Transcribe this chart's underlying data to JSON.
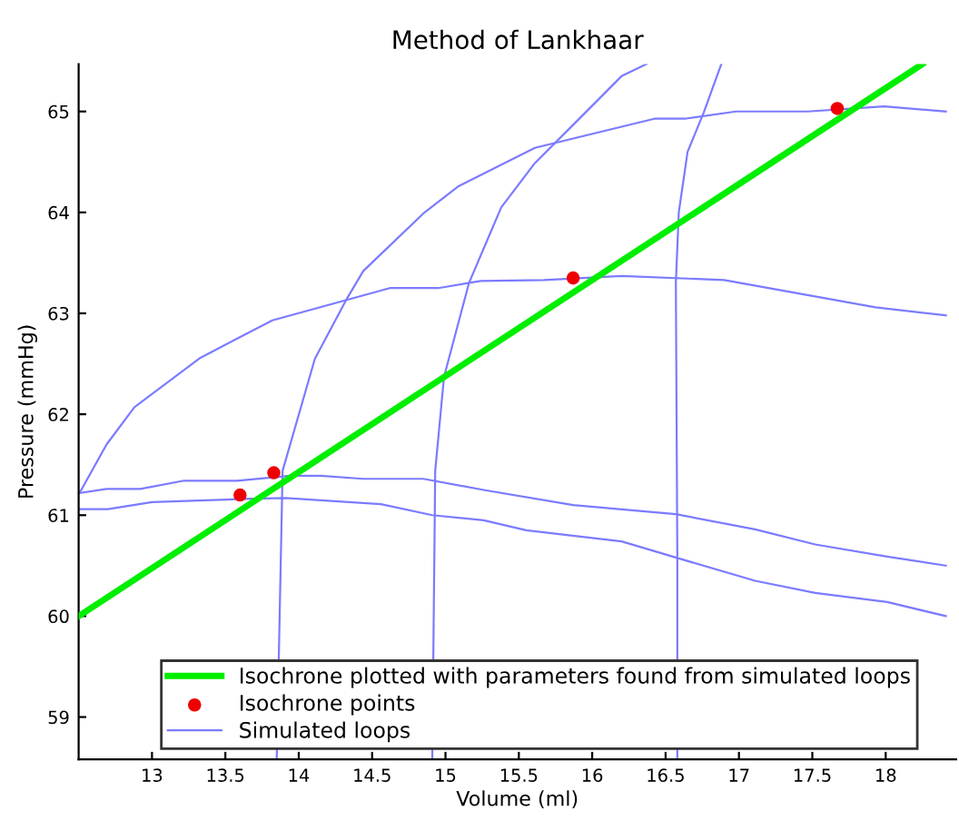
{
  "chart_data": {
    "type": "line",
    "title": "Method of Lankhaar",
    "xlabel": "Volume (ml)",
    "ylabel": "Pressure (mmHg)",
    "xlim": [
      12.5,
      18.48
    ],
    "ylim": [
      58.58,
      65.47
    ],
    "xticks": [
      13,
      13.5,
      14,
      14.5,
      15,
      15.5,
      16,
      16.5,
      17,
      17.5,
      18
    ],
    "yticks": [
      59,
      60,
      61,
      62,
      63,
      64,
      65
    ],
    "grid": false,
    "legend": "bottom",
    "series": [
      {
        "name": "Isochrone plotted with parameters found from simulated loops",
        "color": "#00ee00",
        "x": [
          12.5,
          18.25
        ],
        "values": [
          60.0,
          65.47
        ]
      },
      {
        "name": "Isochrone points",
        "type": "scatter",
        "marker": "circle",
        "color": "#ee0000",
        "x": [
          13.6,
          13.83,
          15.87,
          17.67
        ],
        "values": [
          61.2,
          61.42,
          63.35,
          65.03
        ]
      },
      {
        "name": "Simulated loops",
        "color": "#7b7bff",
        "x": [
          12.51,
          12.69,
          12.88,
          13.33,
          13.82,
          14.62,
          14.95,
          15.24,
          15.67,
          16.2,
          16.9,
          17.93,
          18.41
        ],
        "values": [
          61.23,
          61.7,
          62.07,
          62.56,
          62.93,
          63.25,
          63.25,
          63.32,
          63.33,
          63.37,
          63.33,
          63.06,
          62.98
        ]
      },
      {
        "color": "#7b7bff",
        "x": [
          13.85,
          13.89,
          14.11,
          14.33,
          14.44,
          14.85,
          15.09,
          15.61,
          16.43,
          16.64,
          16.98,
          17.47,
          17.99,
          18.41
        ],
        "values": [
          58.58,
          61.44,
          62.55,
          63.15,
          63.42,
          63.99,
          64.26,
          64.64,
          64.93,
          64.93,
          65.0,
          65.0,
          65.05,
          65.0
        ]
      },
      {
        "color": "#7b7bff",
        "x": [
          14.91,
          14.93,
          14.99,
          15.16,
          15.38,
          15.61,
          15.92,
          16.2,
          16.37
        ],
        "values": [
          58.58,
          61.44,
          62.37,
          63.3,
          64.05,
          64.49,
          64.94,
          65.35,
          65.47
        ]
      },
      {
        "color": "#7b7bff",
        "x": [
          16.58,
          16.58,
          16.57,
          16.59,
          16.65,
          16.76,
          16.88
        ],
        "values": [
          58.58,
          60.6,
          63.3,
          64.0,
          64.6,
          64.99,
          65.47
        ]
      },
      {
        "color": "#7b7bff",
        "x": [
          12.51,
          12.69,
          12.92,
          13.21,
          13.58,
          13.94,
          14.15,
          14.44,
          14.85,
          15.26,
          15.87,
          16.57,
          17.11,
          17.52,
          18.01,
          18.41
        ],
        "values": [
          61.22,
          61.26,
          61.26,
          61.34,
          61.34,
          61.39,
          61.39,
          61.36,
          61.36,
          61.25,
          61.1,
          61.01,
          60.86,
          60.71,
          60.59,
          60.5
        ]
      },
      {
        "color": "#7b7bff",
        "x": [
          12.51,
          12.7,
          13.0,
          13.62,
          13.91,
          14.56,
          14.91,
          15.26,
          15.55,
          16.2,
          16.57,
          17.11,
          17.52,
          18.01,
          18.41
        ],
        "values": [
          61.06,
          61.06,
          61.13,
          61.16,
          61.17,
          61.11,
          61.0,
          60.95,
          60.85,
          60.74,
          60.58,
          60.35,
          60.23,
          60.14,
          60.0
        ]
      }
    ]
  }
}
